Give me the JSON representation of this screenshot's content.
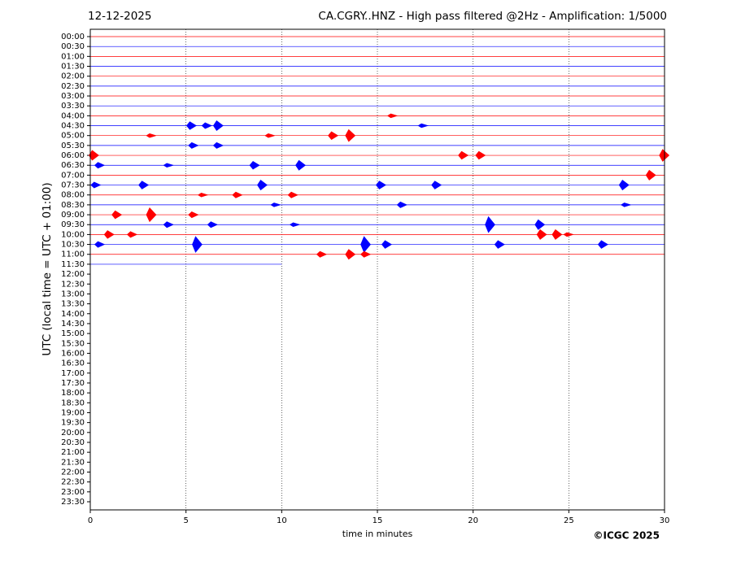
{
  "chart_data": {
    "type": "helicorder",
    "date": "12-12-2025",
    "title": "CA.CGRY..HNZ - High pass filtered @2Hz - Amplification: 1/5000",
    "xlabel": "time in minutes",
    "ylabel": "UTC (local time = UTC + 01:00)",
    "credit": "©ICGC 2025",
    "xlim": [
      0,
      30
    ],
    "xticks": [
      0,
      5,
      10,
      15,
      20,
      25,
      30
    ],
    "grid": true,
    "rows": [
      "00:00",
      "00:30",
      "01:00",
      "01:30",
      "02:00",
      "02:30",
      "03:00",
      "03:30",
      "04:00",
      "04:30",
      "05:00",
      "05:30",
      "06:00",
      "06:30",
      "07:00",
      "07:30",
      "08:00",
      "08:30",
      "09:00",
      "09:30",
      "10:00",
      "10:30",
      "11:00",
      "11:30",
      "12:00",
      "12:30",
      "13:00",
      "13:30",
      "14:00",
      "14:30",
      "15:00",
      "15:30",
      "16:00",
      "16:30",
      "17:00",
      "17:30",
      "18:00",
      "18:30",
      "19:00",
      "19:30",
      "20:00",
      "20:30",
      "21:00",
      "21:30",
      "22:00",
      "22:30",
      "23:00",
      "23:30"
    ],
    "colors": [
      "#ff0000",
      "#0000ff"
    ],
    "traces": [
      30,
      30,
      30,
      30,
      30,
      30,
      30,
      30,
      30,
      30,
      30,
      30,
      30,
      30,
      30,
      30,
      30,
      30,
      30,
      30,
      30,
      30,
      30,
      10
    ],
    "events": [
      {
        "row": 8,
        "x": 15.7,
        "amp": 0.2
      },
      {
        "row": 9,
        "x": 5.2,
        "amp": 0.4
      },
      {
        "row": 9,
        "x": 6.0,
        "amp": 0.3
      },
      {
        "row": 9,
        "x": 6.6,
        "amp": 0.5
      },
      {
        "row": 9,
        "x": 17.3,
        "amp": 0.2
      },
      {
        "row": 10,
        "x": 3.1,
        "amp": 0.2
      },
      {
        "row": 10,
        "x": 9.3,
        "amp": 0.2
      },
      {
        "row": 10,
        "x": 12.6,
        "amp": 0.4
      },
      {
        "row": 10,
        "x": 13.5,
        "amp": 0.6
      },
      {
        "row": 11,
        "x": 5.3,
        "amp": 0.3
      },
      {
        "row": 11,
        "x": 6.6,
        "amp": 0.3
      },
      {
        "row": 12,
        "x": 0.1,
        "amp": 0.5
      },
      {
        "row": 12,
        "x": 19.4,
        "amp": 0.4
      },
      {
        "row": 12,
        "x": 20.3,
        "amp": 0.4
      },
      {
        "row": 12,
        "x": 29.9,
        "amp": 0.6
      },
      {
        "row": 13,
        "x": 0.4,
        "amp": 0.3
      },
      {
        "row": 13,
        "x": 4.0,
        "amp": 0.2
      },
      {
        "row": 13,
        "x": 8.5,
        "amp": 0.4
      },
      {
        "row": 13,
        "x": 10.9,
        "amp": 0.5
      },
      {
        "row": 14,
        "x": 29.2,
        "amp": 0.5
      },
      {
        "row": 15,
        "x": 0.2,
        "amp": 0.3
      },
      {
        "row": 15,
        "x": 2.7,
        "amp": 0.4
      },
      {
        "row": 15,
        "x": 8.9,
        "amp": 0.5
      },
      {
        "row": 15,
        "x": 15.1,
        "amp": 0.4
      },
      {
        "row": 15,
        "x": 18.0,
        "amp": 0.4
      },
      {
        "row": 15,
        "x": 27.8,
        "amp": 0.5
      },
      {
        "row": 16,
        "x": 5.8,
        "amp": 0.2
      },
      {
        "row": 16,
        "x": 7.6,
        "amp": 0.3
      },
      {
        "row": 16,
        "x": 10.5,
        "amp": 0.3
      },
      {
        "row": 17,
        "x": 9.6,
        "amp": 0.2
      },
      {
        "row": 17,
        "x": 16.2,
        "amp": 0.3
      },
      {
        "row": 17,
        "x": 27.9,
        "amp": 0.2
      },
      {
        "row": 18,
        "x": 1.3,
        "amp": 0.4
      },
      {
        "row": 18,
        "x": 3.1,
        "amp": 0.7
      },
      {
        "row": 18,
        "x": 5.3,
        "amp": 0.3
      },
      {
        "row": 19,
        "x": 4.0,
        "amp": 0.3
      },
      {
        "row": 19,
        "x": 6.3,
        "amp": 0.3
      },
      {
        "row": 19,
        "x": 10.6,
        "amp": 0.2
      },
      {
        "row": 19,
        "x": 20.8,
        "amp": 0.8
      },
      {
        "row": 19,
        "x": 23.4,
        "amp": 0.5
      },
      {
        "row": 20,
        "x": 0.9,
        "amp": 0.4
      },
      {
        "row": 20,
        "x": 2.1,
        "amp": 0.3
      },
      {
        "row": 20,
        "x": 23.5,
        "amp": 0.5
      },
      {
        "row": 20,
        "x": 24.3,
        "amp": 0.5
      },
      {
        "row": 20,
        "x": 24.9,
        "amp": 0.2
      },
      {
        "row": 21,
        "x": 0.4,
        "amp": 0.3
      },
      {
        "row": 21,
        "x": 5.5,
        "amp": 0.8
      },
      {
        "row": 21,
        "x": 14.3,
        "amp": 0.8
      },
      {
        "row": 21,
        "x": 15.4,
        "amp": 0.4
      },
      {
        "row": 21,
        "x": 21.3,
        "amp": 0.4
      },
      {
        "row": 21,
        "x": 26.7,
        "amp": 0.4
      },
      {
        "row": 22,
        "x": 12.0,
        "amp": 0.3
      },
      {
        "row": 22,
        "x": 13.5,
        "amp": 0.5
      },
      {
        "row": 22,
        "x": 14.3,
        "amp": 0.3
      }
    ]
  }
}
